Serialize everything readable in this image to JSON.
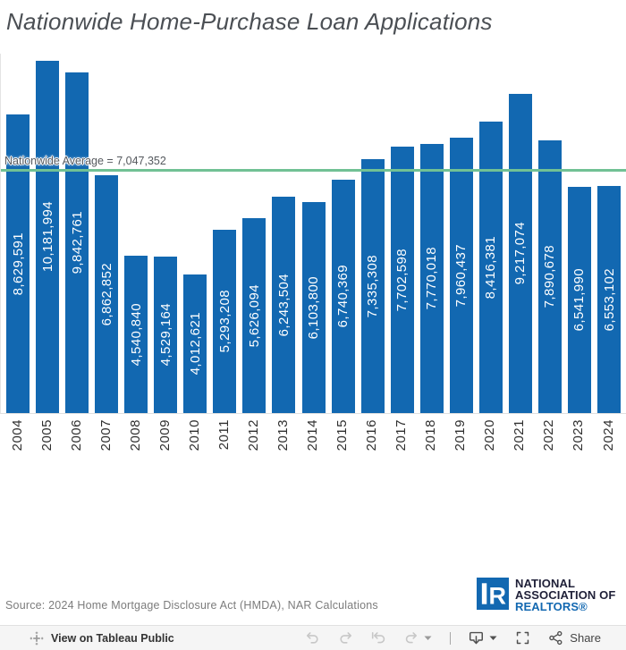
{
  "header": {
    "title": "Nationwide Home-Purchase Loan Applications"
  },
  "chart_data": {
    "type": "bar",
    "title": "Nationwide Home-Purchase Loan Applications",
    "categories": [
      "2004",
      "2005",
      "2006",
      "2007",
      "2008",
      "2009",
      "2010",
      "2011",
      "2012",
      "2013",
      "2014",
      "2015",
      "2016",
      "2017",
      "2018",
      "2019",
      "2020",
      "2021",
      "2022",
      "2023",
      "2024"
    ],
    "values": [
      8629591,
      10181994,
      9842761,
      6862852,
      4540840,
      4529164,
      4012621,
      5293208,
      5626094,
      6243504,
      6103800,
      6740369,
      7335308,
      7702598,
      7770018,
      7960437,
      8416381,
      9217074,
      7890678,
      6541990,
      6553102
    ],
    "xlabel": "",
    "ylabel": "",
    "ylim": [
      0,
      10415000
    ],
    "grid": "off",
    "legend": "none",
    "bar_color": "#1268b1",
    "bar_label_color": "#ffffff",
    "reference_line": {
      "label": "Nationwide Average = 7,047,352",
      "value": 7047352,
      "color": "#71c194"
    }
  },
  "footer": {
    "source": "Source: 2024 Home Mortgage Disclosure Act (HMDA), NAR Calculations",
    "nar_logo": {
      "mark_letter": "R",
      "line1": "NATIONAL",
      "line2": "ASSOCIATION OF",
      "line3": "REALTORS®",
      "blue": "#1268b1",
      "dark": "#1f2038"
    }
  },
  "toolbar": {
    "view_label": "View on Tableau Public",
    "share_label": "Share",
    "icons": [
      "tableau-logo",
      "undo",
      "redo",
      "revert",
      "refresh",
      "caret-down",
      "download",
      "caret-down",
      "fullscreen",
      "share"
    ]
  }
}
